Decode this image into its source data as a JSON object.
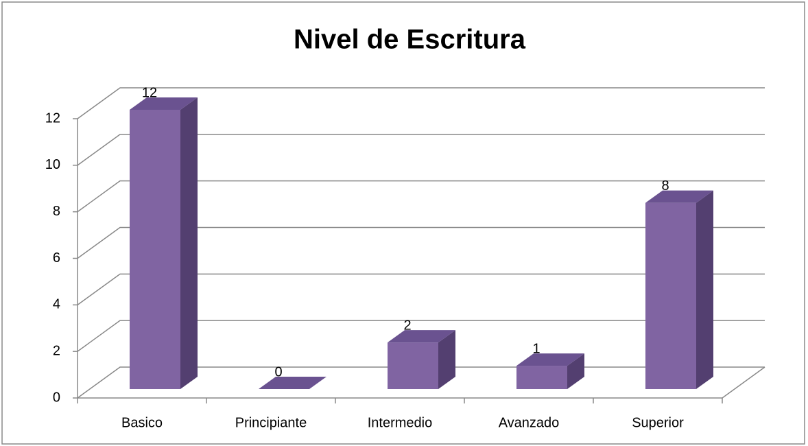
{
  "chart_data": {
    "type": "bar3d",
    "title": "Nivel de Escritura",
    "categories": [
      "Basico",
      "Principiante",
      "Intermedio",
      "Avanzado",
      "Superior"
    ],
    "values": [
      12,
      0,
      2,
      1,
      8
    ],
    "color": "#8064a2",
    "ylim": [
      0,
      12
    ],
    "yticks": [
      0,
      2,
      4,
      6,
      8,
      10,
      12
    ],
    "grid": true
  }
}
